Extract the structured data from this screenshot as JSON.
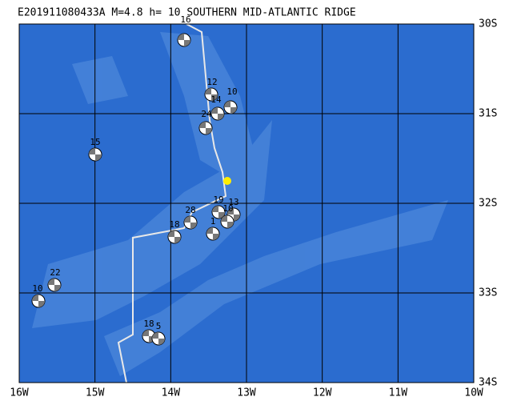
{
  "header": {
    "title": "E201911080433A M=4.8 h= 10 SOUTHERN MID-ATLANTIC RIDGE"
  },
  "x_labels": [
    "16W",
    "15W",
    "14W",
    "13W",
    "12W",
    "11W",
    "10W"
  ],
  "y_labels": [
    "30S",
    "31S",
    "32S",
    "33S",
    "34S"
  ],
  "events": [
    {
      "label": "16"
    },
    {
      "label": "12"
    },
    {
      "label": "10"
    },
    {
      "label": "14"
    },
    {
      "label": "24"
    },
    {
      "label": "15"
    },
    {
      "label": "19"
    },
    {
      "label": "13"
    },
    {
      "label": "10"
    },
    {
      "label": "28"
    },
    {
      "label": "18"
    },
    {
      "label": "1"
    },
    {
      "label": "22"
    },
    {
      "label": "10"
    },
    {
      "label": "18"
    },
    {
      "label": "5"
    }
  ]
}
